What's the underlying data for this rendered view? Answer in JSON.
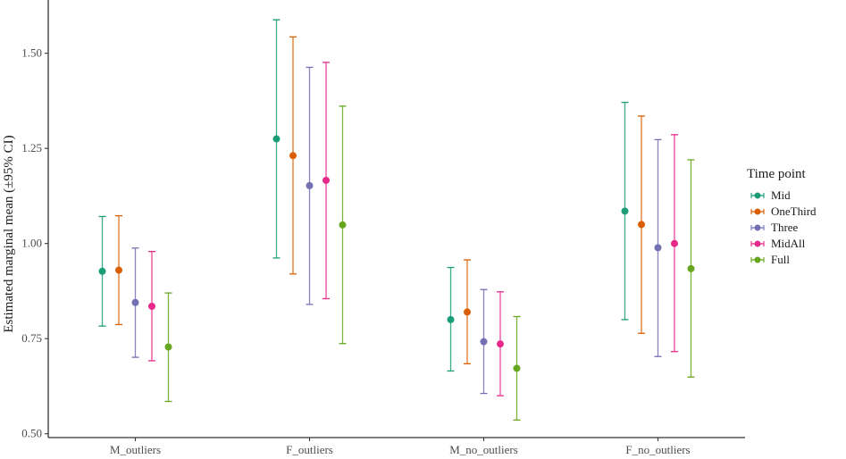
{
  "chart_data": {
    "type": "scatter",
    "subtype": "point-range",
    "title": "",
    "xlabel": "",
    "ylabel": "Estimated marginal mean (±95% CI)",
    "categories": [
      "M_outliers",
      "F_outliers",
      "M_no_outliers",
      "F_no_outliers"
    ],
    "ylim": [
      0.49,
      1.64
    ],
    "yticks": [
      0.5,
      0.75,
      1.0,
      1.25,
      1.5
    ],
    "ytick_labels": [
      "0.50",
      "0.75",
      "1.00",
      "1.25",
      "1.50"
    ],
    "grid": false,
    "legend": {
      "title": "Time point",
      "position": "right"
    },
    "series": [
      {
        "name": "Mid",
        "color": "#1b9e77",
        "values": [
          0.927,
          1.275,
          0.8,
          1.085
        ],
        "lower": [
          0.783,
          0.962,
          0.665,
          0.8
        ],
        "upper": [
          1.071,
          1.588,
          0.937,
          1.371
        ]
      },
      {
        "name": "OneThird",
        "color": "#d95f02",
        "values": [
          0.93,
          1.231,
          0.82,
          1.05
        ],
        "lower": [
          0.787,
          0.92,
          0.684,
          0.764
        ],
        "upper": [
          1.073,
          1.543,
          0.957,
          1.335
        ]
      },
      {
        "name": "Three",
        "color": "#7570b3",
        "values": [
          0.845,
          1.152,
          0.742,
          0.989
        ],
        "lower": [
          0.701,
          0.84,
          0.606,
          0.703
        ],
        "upper": [
          0.988,
          1.463,
          0.879,
          1.273
        ]
      },
      {
        "name": "MidAll",
        "color": "#e7298a",
        "values": [
          0.835,
          1.166,
          0.736,
          1.0
        ],
        "lower": [
          0.692,
          0.855,
          0.6,
          0.716
        ],
        "upper": [
          0.979,
          1.476,
          0.873,
          1.286
        ]
      },
      {
        "name": "Full",
        "color": "#66a61e",
        "values": [
          0.728,
          1.049,
          0.672,
          0.934
        ],
        "lower": [
          0.585,
          0.737,
          0.536,
          0.649
        ],
        "upper": [
          0.87,
          1.361,
          0.808,
          1.22
        ]
      }
    ]
  }
}
